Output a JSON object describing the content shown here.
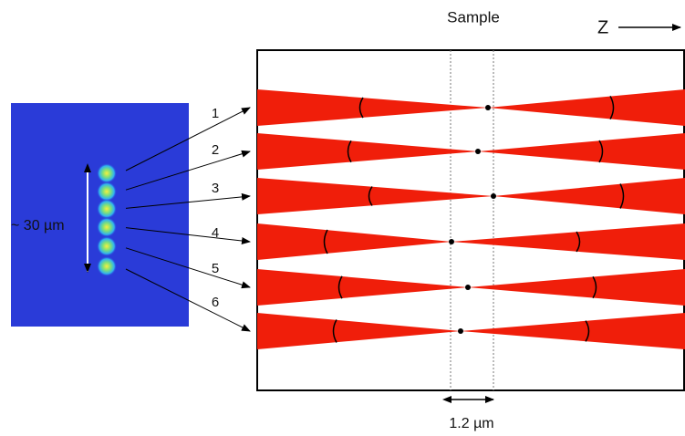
{
  "sample_label": "Sample",
  "axis_label": "Z",
  "spot_spacing_label": "~ 30 µm",
  "beam_labels": [
    "1",
    "2",
    "3",
    "4",
    "5",
    "6"
  ],
  "focus_spread_label": "1.2 µm"
}
